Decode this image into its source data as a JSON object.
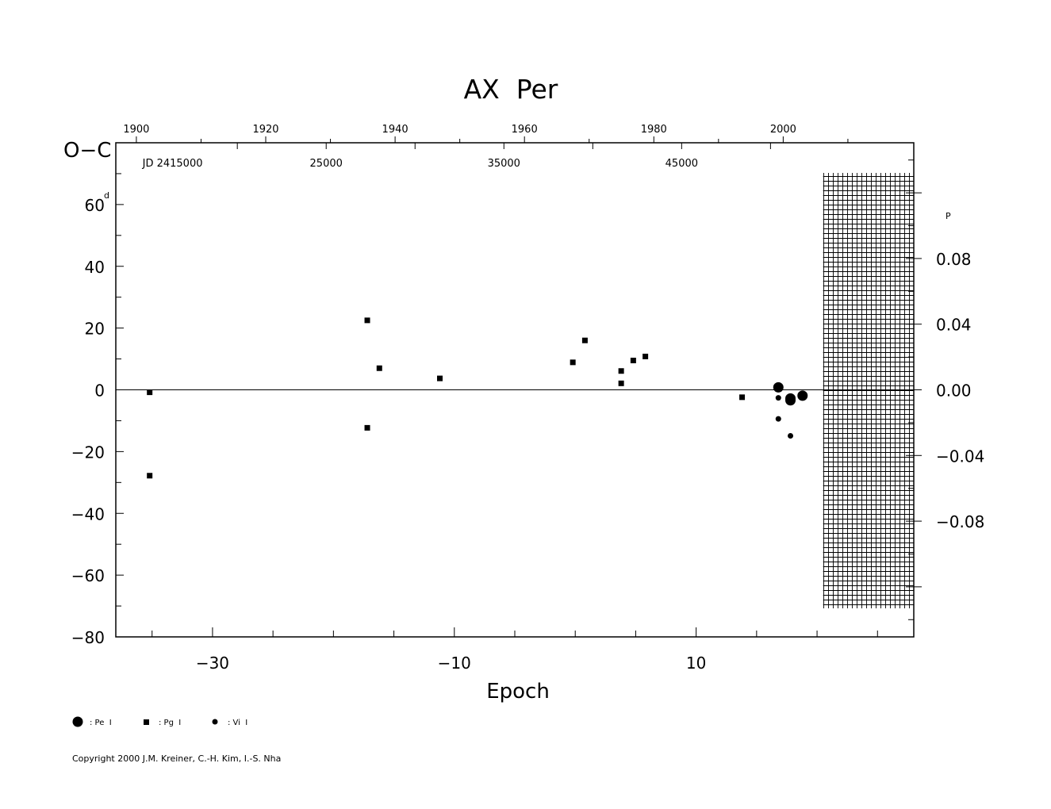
{
  "chart_data": {
    "type": "scatter",
    "title": "AX  Per",
    "xlabel": "Epoch",
    "ylabel": "O−C",
    "y_unit": "d",
    "y2_unit": "P",
    "xlim": [
      -38,
      28
    ],
    "ylim": [
      -80,
      80
    ],
    "y2lim": [
      -0.1505,
      0.1505
    ],
    "grid": false,
    "x_ticks": [
      -30,
      -10,
      10
    ],
    "x_tick_labels": [
      "−30",
      "−10",
      "10"
    ],
    "y_ticks": [
      60,
      40,
      20,
      0,
      -20,
      -40,
      -60,
      -80
    ],
    "y_tick_labels": [
      "60",
      "40",
      "20",
      "0",
      "−20",
      "−40",
      "−60",
      "−80"
    ],
    "y2_ticks": [
      0.08,
      0.04,
      0.0,
      -0.04,
      -0.08
    ],
    "y2_tick_labels": [
      "0.08",
      "0.04",
      "0.00",
      "−0.04",
      "−0.08"
    ],
    "top_year_axis": {
      "labels": [
        "1900",
        "1920",
        "1940",
        "1960",
        "1980",
        "2000"
      ],
      "epochs": [
        -36.3,
        -25.6,
        -14.9,
        -4.2,
        6.5,
        17.2
      ]
    },
    "top_jd_axis": {
      "labels": [
        "JD  2415000",
        "25000",
        "35000",
        "45000"
      ],
      "epochs": [
        -35.4,
        -20.6,
        -5.9,
        8.8
      ]
    },
    "future_hatch_from_epoch": 20.5,
    "series": [
      {
        "name": ": Pe  I",
        "marker": "circle-large",
        "points": [
          {
            "x": 16.8,
            "y": 0.8
          },
          {
            "x": 17.8,
            "y": -2.8
          },
          {
            "x": 17.8,
            "y": -3.4
          },
          {
            "x": 18.8,
            "y": -1.9
          }
        ]
      },
      {
        "name": ": Pg  I",
        "marker": "square",
        "points": [
          {
            "x": -35.2,
            "y": -0.8
          },
          {
            "x": -35.2,
            "y": -27.8
          },
          {
            "x": -17.2,
            "y": 22.5
          },
          {
            "x": -17.2,
            "y": -12.3
          },
          {
            "x": -16.2,
            "y": 7.0
          },
          {
            "x": -11.2,
            "y": 3.7
          },
          {
            "x": -0.2,
            "y": 8.9
          },
          {
            "x": 0.8,
            "y": 16.0
          },
          {
            "x": 3.8,
            "y": 6.1
          },
          {
            "x": 3.8,
            "y": 2.1
          },
          {
            "x": 4.8,
            "y": 9.5
          },
          {
            "x": 5.8,
            "y": 10.8
          },
          {
            "x": 13.8,
            "y": -2.4
          }
        ]
      },
      {
        "name": ": Vi  I",
        "marker": "circle-small",
        "points": [
          {
            "x": 16.8,
            "y": -2.6
          },
          {
            "x": 16.8,
            "y": -9.4
          },
          {
            "x": 17.8,
            "y": -14.9
          },
          {
            "x": 17.8,
            "y": -2.4
          }
        ]
      }
    ]
  },
  "copyright": "Copyright 2000 J.M. Kreiner, C.-H. Kim, I.-S. Nha"
}
